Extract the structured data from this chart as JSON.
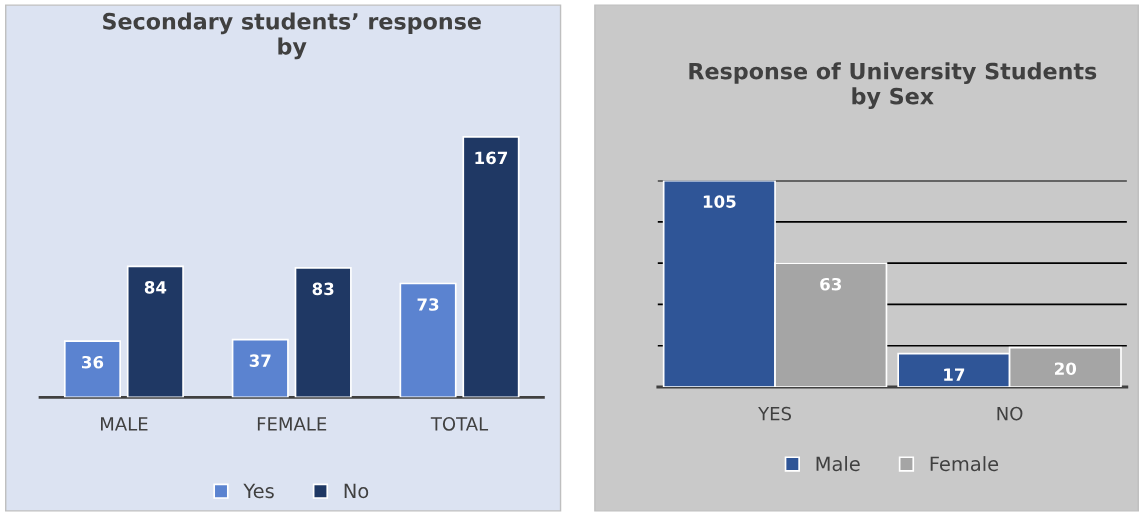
{
  "chart_data": [
    {
      "type": "bar",
      "title": "Secondary students’ response\nby",
      "categories": [
        "MALE",
        "FEMALE",
        "TOTAL"
      ],
      "series": [
        {
          "name": "Yes",
          "color": "#5b83d0",
          "values": [
            36,
            37,
            73
          ]
        },
        {
          "name": "No",
          "color": "#1f3864",
          "values": [
            84,
            83,
            167
          ]
        }
      ],
      "tick_labels": "x",
      "data_labels": true,
      "legend": "bottom",
      "grid": false
    },
    {
      "type": "bar",
      "title": "Response of University Students\nby Sex",
      "categories": [
        "YES",
        "NO"
      ],
      "series": [
        {
          "name": "Male",
          "color": "#2f5597",
          "values": [
            105,
            17
          ]
        },
        {
          "name": "Female",
          "color": "#a5a5a5",
          "values": [
            63,
            20
          ]
        }
      ],
      "ylim": [
        0,
        105
      ],
      "yticks": [
        {
          "value": 0,
          "label": null
        },
        {
          "value": 21,
          "label": null
        },
        {
          "value": 42,
          "label": null
        },
        {
          "value": 63,
          "label": null
        },
        {
          "value": 84,
          "label": null
        },
        {
          "value": 105,
          "label": null
        }
      ],
      "tick_labels": "x",
      "data_labels": true,
      "legend": "bottom",
      "grid": "y"
    }
  ]
}
